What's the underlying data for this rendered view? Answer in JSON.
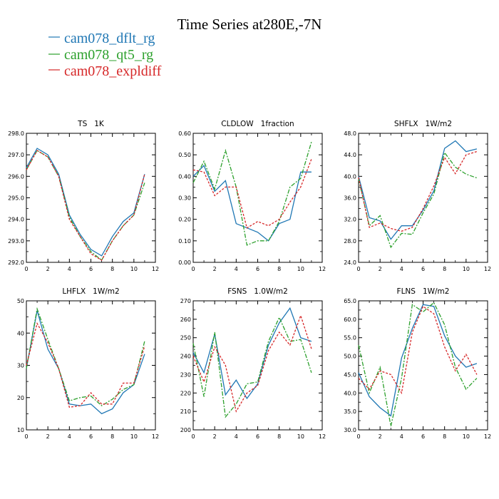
{
  "figure": {
    "title": "Time Series at280E,-7N"
  },
  "legend": [
    {
      "label": "cam078_dflt_rg",
      "color": "#1f77b4"
    },
    {
      "label": "cam078_qt5_rg",
      "color": "#2ca02c"
    },
    {
      "label": "cam078_expldiff",
      "color": "#d62728"
    }
  ],
  "chart_data": [
    {
      "type": "line",
      "title": "TS   1K",
      "x": [
        0,
        1,
        2,
        3,
        4,
        5,
        6,
        7,
        8,
        9,
        10,
        11
      ],
      "xlim": [
        0,
        12
      ],
      "xticks": [
        "0",
        "2",
        "4",
        "6",
        "8",
        "10",
        "12"
      ],
      "ylim": [
        292.0,
        298.0
      ],
      "yticks": [
        "292.0",
        "293.0",
        "294.0",
        "295.0",
        "296.0",
        "297.0",
        "298.0"
      ],
      "series": [
        {
          "name": "cam078_dflt_rg",
          "values": [
            296.4,
            297.3,
            297.0,
            296.1,
            294.2,
            293.3,
            292.6,
            292.3,
            293.2,
            293.9,
            294.3,
            296.1
          ]
        },
        {
          "name": "cam078_qt5_rg",
          "values": [
            296.3,
            297.2,
            296.9,
            296.0,
            294.1,
            293.2,
            292.5,
            292.1,
            293.0,
            293.7,
            294.2,
            295.7
          ]
        },
        {
          "name": "cam078_expldiff",
          "values": [
            296.3,
            297.2,
            296.9,
            296.0,
            294.0,
            293.2,
            292.4,
            292.1,
            293.0,
            293.7,
            294.2,
            296.1
          ]
        }
      ]
    },
    {
      "type": "line",
      "title": "CLDLOW   1fraction",
      "x": [
        0,
        1,
        2,
        3,
        4,
        5,
        6,
        7,
        8,
        9,
        10,
        11
      ],
      "xlim": [
        0,
        12
      ],
      "xticks": [
        "0",
        "2",
        "4",
        "6",
        "8",
        "10",
        "12"
      ],
      "ylim": [
        0.0,
        0.6
      ],
      "yticks": [
        "0.00",
        "0.10",
        "0.20",
        "0.30",
        "0.40",
        "0.50",
        "0.60"
      ],
      "series": [
        {
          "name": "cam078_dflt_rg",
          "values": [
            0.4,
            0.45,
            0.33,
            0.38,
            0.18,
            0.16,
            0.14,
            0.1,
            0.18,
            0.2,
            0.42,
            0.42
          ]
        },
        {
          "name": "cam078_qt5_rg",
          "values": [
            0.37,
            0.47,
            0.34,
            0.52,
            0.35,
            0.08,
            0.1,
            0.1,
            0.19,
            0.35,
            0.39,
            0.56
          ]
        },
        {
          "name": "cam078_expldiff",
          "values": [
            0.43,
            0.42,
            0.31,
            0.35,
            0.35,
            0.16,
            0.19,
            0.17,
            0.2,
            0.28,
            0.35,
            0.48
          ]
        }
      ]
    },
    {
      "type": "line",
      "title": "SHFLX   1W/m2",
      "x": [
        0,
        1,
        2,
        3,
        4,
        5,
        6,
        7,
        8,
        9,
        10,
        11
      ],
      "xlim": [
        0,
        12
      ],
      "xticks": [
        "0",
        "2",
        "4",
        "6",
        "8",
        "10",
        "12"
      ],
      "ylim": [
        24.0,
        48.0
      ],
      "yticks": [
        "24.0",
        "28.0",
        "32.0",
        "36.0",
        "40.0",
        "44.0",
        "48.0"
      ],
      "series": [
        {
          "name": "cam078_dflt_rg",
          "values": [
            40.0,
            32.3,
            31.7,
            28.3,
            30.8,
            30.8,
            33.7,
            37.3,
            45.2,
            46.6,
            44.6,
            45.1
          ]
        },
        {
          "name": "cam078_qt5_rg",
          "values": [
            39.5,
            30.8,
            32.7,
            26.8,
            29.4,
            29.2,
            33.2,
            36.7,
            44.4,
            41.7,
            40.4,
            39.7
          ]
        },
        {
          "name": "cam078_expldiff",
          "values": [
            39.8,
            30.5,
            31.3,
            30.3,
            29.8,
            30.5,
            34.0,
            38.2,
            43.5,
            40.5,
            44.0,
            44.6
          ]
        }
      ]
    },
    {
      "type": "line",
      "title": "LHFLX   1W/m2",
      "x": [
        0,
        1,
        2,
        3,
        4,
        5,
        6,
        7,
        8,
        9,
        10,
        11
      ],
      "xlim": [
        0,
        12
      ],
      "xticks": [
        "0",
        "2",
        "4",
        "6",
        "8",
        "10",
        "12"
      ],
      "ylim": [
        10,
        50
      ],
      "yticks": [
        "10",
        "20",
        "30",
        "40",
        "50"
      ],
      "series": [
        {
          "name": "cam078_dflt_rg",
          "values": [
            29,
            47,
            35,
            29,
            18,
            17.5,
            18,
            15,
            16.5,
            21.5,
            24,
            33.5
          ]
        },
        {
          "name": "cam078_qt5_rg",
          "values": [
            29,
            47.5,
            38,
            29,
            19,
            20,
            20.5,
            17.5,
            19.5,
            22.5,
            24,
            37.5
          ]
        },
        {
          "name": "cam078_expldiff",
          "values": [
            30,
            43,
            37,
            29,
            17,
            17.5,
            21.5,
            18,
            18,
            24.5,
            24.5,
            36
          ]
        }
      ]
    },
    {
      "type": "line",
      "title": "FSNS   1.0W/m2",
      "x": [
        0,
        1,
        2,
        3,
        4,
        5,
        6,
        7,
        8,
        9,
        10,
        11
      ],
      "xlim": [
        0,
        12
      ],
      "xticks": [
        "0",
        "2",
        "4",
        "6",
        "8",
        "10",
        "12"
      ],
      "ylim": [
        200,
        270
      ],
      "yticks": [
        "200",
        "210",
        "220",
        "230",
        "240",
        "250",
        "260",
        "270"
      ],
      "series": [
        {
          "name": "cam078_dflt_rg",
          "values": [
            242,
            231,
            252,
            219,
            227,
            217,
            225,
            246,
            258,
            266,
            250,
            248
          ]
        },
        {
          "name": "cam078_qt5_rg",
          "values": [
            247,
            218,
            253,
            207,
            214,
            225,
            226,
            248,
            261,
            248,
            249,
            231
          ]
        },
        {
          "name": "cam078_expldiff",
          "values": [
            240,
            226,
            245,
            235,
            210,
            220,
            224,
            243,
            253,
            246,
            262,
            244
          ]
        }
      ]
    },
    {
      "type": "line",
      "title": "FLNS   1W/m2",
      "x": [
        0,
        1,
        2,
        3,
        4,
        5,
        6,
        7,
        8,
        9,
        10,
        11
      ],
      "xlim": [
        0,
        12
      ],
      "xticks": [
        "0",
        "2",
        "4",
        "6",
        "8",
        "10",
        "12"
      ],
      "ylim": [
        30.0,
        65.0
      ],
      "yticks": [
        "30.0",
        "35.0",
        "40.0",
        "45.0",
        "50.0",
        "55.0",
        "60.0",
        "65.0"
      ],
      "series": [
        {
          "name": "cam078_dflt_rg",
          "values": [
            45.5,
            39.0,
            36.0,
            33.8,
            49.5,
            57.5,
            64.0,
            63.5,
            55.5,
            50.0,
            47.0,
            48.0
          ]
        },
        {
          "name": "cam078_qt5_rg",
          "values": [
            53.0,
            40.0,
            47.0,
            31.0,
            44.0,
            64.0,
            62.0,
            64.5,
            58.5,
            47.0,
            41.0,
            44.0
          ]
        },
        {
          "name": "cam078_expldiff",
          "values": [
            44.0,
            41.0,
            46.0,
            45.0,
            40.0,
            56.5,
            63.5,
            61.5,
            52.5,
            46.0,
            50.5,
            45.0
          ]
        }
      ]
    }
  ]
}
